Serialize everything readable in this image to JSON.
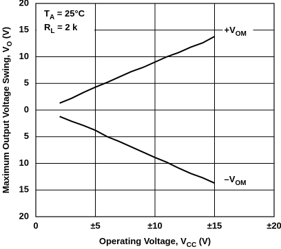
{
  "chart_data": {
    "type": "line",
    "xlabel": [
      {
        "text": "Operating Voltage, V"
      },
      {
        "sub": "CC"
      },
      {
        "text": " (V)"
      }
    ],
    "ylabel": [
      {
        "text": "Maximum Output Voltage Swing, V"
      },
      {
        "sub": "O"
      },
      {
        "text": " (V)"
      }
    ],
    "annotations": [
      [
        {
          "text": "T"
        },
        {
          "sub": "A"
        },
        {
          "text": " = 25°C"
        }
      ],
      [
        {
          "text": "R"
        },
        {
          "sub": "L"
        },
        {
          "text": " = 2 k"
        }
      ]
    ],
    "x": [
      2,
      3,
      4,
      5,
      6,
      7,
      8,
      9,
      10,
      11,
      12,
      13,
      14,
      15
    ],
    "series": [
      {
        "name": [
          {
            "text": "+V"
          },
          {
            "sub": "OM"
          }
        ],
        "color": "#000000",
        "values": [
          1.3,
          2.2,
          3.3,
          4.3,
          5.2,
          6.2,
          7.2,
          8.0,
          9.0,
          10.0,
          10.8,
          11.8,
          12.6,
          13.8
        ]
      },
      {
        "name": [
          {
            "text": "–V"
          },
          {
            "sub": "OM"
          }
        ],
        "color": "#000000",
        "values": [
          -1.2,
          -2.1,
          -2.9,
          -3.8,
          -5.0,
          -5.9,
          -6.9,
          -7.9,
          -8.9,
          -9.8,
          -10.9,
          -11.9,
          -12.7,
          -13.7
        ]
      }
    ],
    "xlim": [
      0,
      20
    ],
    "xticks": [
      0,
      {
        "value": 5,
        "label": "±5"
      },
      {
        "value": 10,
        "label": "±10"
      },
      {
        "value": 15,
        "label": "±15"
      },
      {
        "value": 20,
        "label": "±20"
      }
    ],
    "ylim": [
      -20,
      20
    ],
    "yticks": [
      {
        "value": -20,
        "label": "20"
      },
      {
        "value": -15,
        "label": "15"
      },
      {
        "value": -10,
        "label": "10"
      },
      {
        "value": -5,
        "label": "5"
      },
      0,
      5,
      10,
      15,
      20
    ],
    "grid": true
  }
}
